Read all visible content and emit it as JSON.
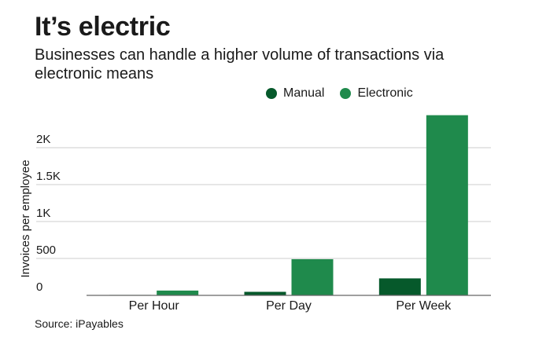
{
  "colors": {
    "manual": "#06592b",
    "electronic": "#1f8a4c",
    "grid": "#cccccc",
    "axis": "#666666",
    "text": "#1a1a1a"
  },
  "chart_data": {
    "type": "bar",
    "title": "It’s electric",
    "subtitle": "Businesses can handle a higher volume of transactions via electronic means",
    "ylabel": "Invoices per employee",
    "xlabel": "",
    "categories": [
      "Per Hour",
      "Per Day",
      "Per Week"
    ],
    "series": [
      {
        "name": "Manual",
        "values": [
          6,
          48,
          230
        ]
      },
      {
        "name": "Electronic",
        "values": [
          65,
          490,
          2440
        ]
      }
    ],
    "yticks": [
      0,
      500,
      1000,
      1500,
      2000
    ],
    "ytick_labels": [
      "0",
      "500",
      "1K",
      "1.5K",
      "2K"
    ],
    "ylim": [
      0,
      2500
    ],
    "grid": true,
    "legend_position": "top"
  },
  "legend": {
    "manual_label": "Manual",
    "electronic_label": "Electronic"
  },
  "source": "Source: iPayables"
}
